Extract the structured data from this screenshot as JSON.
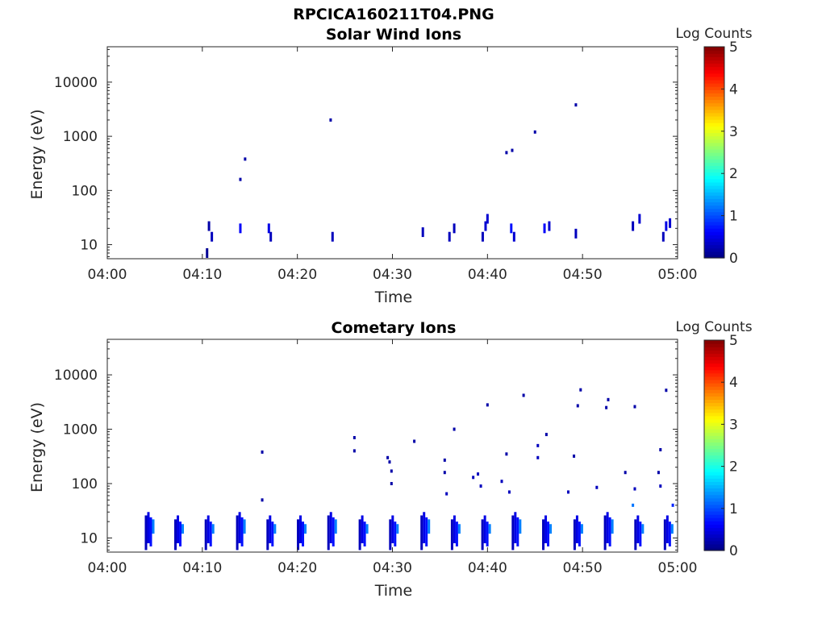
{
  "figure": {
    "title": "RPCICA160211T04.PNG"
  },
  "chart_data": [
    {
      "type": "heatmap",
      "title": "Solar Wind Ions",
      "xlabel": "Time",
      "ylabel": "Energy (eV)",
      "x_ticks": [
        "04:00",
        "04:10",
        "04:20",
        "04:30",
        "04:40",
        "04:50",
        "05:00"
      ],
      "xlim": [
        "04:00",
        "05:00"
      ],
      "y_scale": "log",
      "y_ticks": [
        "10",
        "100",
        "1000",
        "10000"
      ],
      "ylim": [
        5.5,
        45000
      ],
      "colorbar": {
        "label": "Log Counts",
        "range": [
          0,
          5
        ],
        "ticks": [
          "0",
          "1",
          "2",
          "3",
          "4",
          "5"
        ],
        "colormap": "jet"
      },
      "cells": [
        {
          "t": "04:10.5",
          "e": 7,
          "v": 0.1
        },
        {
          "t": "04:10.7",
          "e": 22,
          "v": 0.2
        },
        {
          "t": "04:11",
          "e": 14,
          "v": 0.3
        },
        {
          "t": "04:14",
          "e": 160,
          "v": 0.2
        },
        {
          "t": "04:14.5",
          "e": 380,
          "v": 0.2
        },
        {
          "t": "04:14",
          "e": 20,
          "v": 0.6
        },
        {
          "t": "04:17",
          "e": 20,
          "v": 0.5
        },
        {
          "t": "04:17.2",
          "e": 14,
          "v": 0.3
        },
        {
          "t": "04:23.5",
          "e": 2000,
          "v": 0.2
        },
        {
          "t": "04:23.7",
          "e": 14,
          "v": 0.3
        },
        {
          "t": "04:33.2",
          "e": 17,
          "v": 0.3
        },
        {
          "t": "04:36",
          "e": 14,
          "v": 0.3
        },
        {
          "t": "04:36.5",
          "e": 20,
          "v": 0.3
        },
        {
          "t": "04:39.5",
          "e": 14,
          "v": 0.3
        },
        {
          "t": "04:39.8",
          "e": 22,
          "v": 0.4
        },
        {
          "t": "04:40",
          "e": 30,
          "v": 0.4
        },
        {
          "t": "04:42",
          "e": 500,
          "v": 0.2
        },
        {
          "t": "04:42.6",
          "e": 550,
          "v": 0.2
        },
        {
          "t": "04:42.5",
          "e": 20,
          "v": 0.7
        },
        {
          "t": "04:42.8",
          "e": 14,
          "v": 0.4
        },
        {
          "t": "04:45",
          "e": 1200,
          "v": 0.2
        },
        {
          "t": "04:46",
          "e": 20,
          "v": 0.6
        },
        {
          "t": "04:46.5",
          "e": 22,
          "v": 0.4
        },
        {
          "t": "04:49.3",
          "e": 3800,
          "v": 0.2
        },
        {
          "t": "04:49.3",
          "e": 16,
          "v": 0.3
        },
        {
          "t": "04:55.3",
          "e": 22,
          "v": 0.3
        },
        {
          "t": "04:56",
          "e": 30,
          "v": 0.4
        },
        {
          "t": "04:58.5",
          "e": 14,
          "v": 0.3
        },
        {
          "t": "04:58.8",
          "e": 22,
          "v": 0.5
        },
        {
          "t": "04:59.2",
          "e": 25,
          "v": 0.4
        }
      ]
    },
    {
      "type": "heatmap",
      "title": "Cometary Ions",
      "xlabel": "Time",
      "ylabel": "Energy (eV)",
      "x_ticks": [
        "04:00",
        "04:10",
        "04:20",
        "04:30",
        "04:40",
        "04:50",
        "05:00"
      ],
      "xlim": [
        "04:00",
        "05:00"
      ],
      "y_scale": "log",
      "y_ticks": [
        "10",
        "100",
        "1000",
        "10000"
      ],
      "ylim": [
        5.5,
        45000
      ],
      "colorbar": {
        "label": "Log Counts",
        "range": [
          0,
          5
        ],
        "ticks": [
          "0",
          "1",
          "2",
          "3",
          "4",
          "5"
        ],
        "colormap": "jet"
      },
      "bursts_minutes": [
        "04:04.2",
        "04:07.3",
        "04:10.5",
        "04:13.8",
        "04:17",
        "04:20.2",
        "04:23.4",
        "04:26.7",
        "04:29.9",
        "04:33.2",
        "04:36.4",
        "04:39.6",
        "04:42.8",
        "04:46",
        "04:49.3",
        "04:52.5",
        "04:55.7",
        "04:58.8"
      ],
      "burst_energy_range": [
        6,
        26
      ],
      "cells": [
        {
          "t": "04:16.3",
          "e": 380,
          "v": 0.2
        },
        {
          "t": "04:16.3",
          "e": 50,
          "v": 0.2
        },
        {
          "t": "04:26",
          "e": 700,
          "v": 0.2
        },
        {
          "t": "04:26",
          "e": 400,
          "v": 0.2
        },
        {
          "t": "04:29.5",
          "e": 300,
          "v": 0.2
        },
        {
          "t": "04:29.7",
          "e": 250,
          "v": 0.2
        },
        {
          "t": "04:29.9",
          "e": 170,
          "v": 0.2
        },
        {
          "t": "04:29.9",
          "e": 100,
          "v": 0.2
        },
        {
          "t": "04:32.3",
          "e": 600,
          "v": 0.2
        },
        {
          "t": "04:35.5",
          "e": 270,
          "v": 0.2
        },
        {
          "t": "04:35.5",
          "e": 160,
          "v": 0.2
        },
        {
          "t": "04:35.7",
          "e": 65,
          "v": 0.3
        },
        {
          "t": "04:36.5",
          "e": 1000,
          "v": 0.2
        },
        {
          "t": "04:38.5",
          "e": 130,
          "v": 0.3
        },
        {
          "t": "04:39",
          "e": 150,
          "v": 0.3
        },
        {
          "t": "04:39.3",
          "e": 90,
          "v": 0.3
        },
        {
          "t": "04:40",
          "e": 2800,
          "v": 0.2
        },
        {
          "t": "04:41.5",
          "e": 110,
          "v": 0.3
        },
        {
          "t": "04:42",
          "e": 350,
          "v": 0.2
        },
        {
          "t": "04:42.3",
          "e": 70,
          "v": 0.3
        },
        {
          "t": "04:43.8",
          "e": 4200,
          "v": 0.2
        },
        {
          "t": "04:45.3",
          "e": 500,
          "v": 0.3
        },
        {
          "t": "04:45.3",
          "e": 300,
          "v": 0.3
        },
        {
          "t": "04:46.2",
          "e": 800,
          "v": 0.2
        },
        {
          "t": "04:48.5",
          "e": 70,
          "v": 0.3
        },
        {
          "t": "04:49.1",
          "e": 320,
          "v": 0.2
        },
        {
          "t": "04:49.5",
          "e": 2700,
          "v": 0.2
        },
        {
          "t": "04:49.8",
          "e": 5300,
          "v": 0.2
        },
        {
          "t": "04:51.5",
          "e": 85,
          "v": 0.3
        },
        {
          "t": "04:52.5",
          "e": 2500,
          "v": 0.2
        },
        {
          "t": "04:52.7",
          "e": 3500,
          "v": 0.2
        },
        {
          "t": "04:55.5",
          "e": 2600,
          "v": 0.2
        },
        {
          "t": "04:54.5",
          "e": 160,
          "v": 0.2
        },
        {
          "t": "04:55.3",
          "e": 40,
          "v": 1.2
        },
        {
          "t": "04:55.5",
          "e": 80,
          "v": 0.3
        },
        {
          "t": "04:58.2",
          "e": 420,
          "v": 0.2
        },
        {
          "t": "04:58",
          "e": 160,
          "v": 0.2
        },
        {
          "t": "04:58.2",
          "e": 90,
          "v": 0.3
        },
        {
          "t": "04:58.8",
          "e": 5200,
          "v": 0.2
        },
        {
          "t": "04:59.5",
          "e": 40,
          "v": 0.8
        }
      ]
    }
  ]
}
